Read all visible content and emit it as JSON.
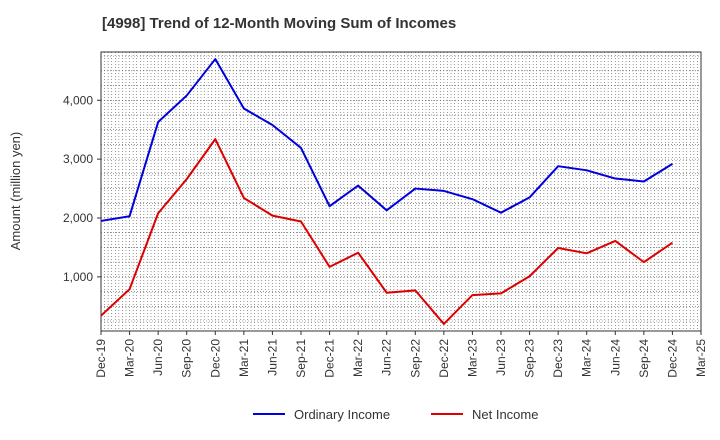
{
  "title": "[4998]  Trend of 12-Month Moving Sum of Incomes",
  "chart_data": {
    "type": "line",
    "title": "[4998]  Trend of 12-Month Moving Sum of Incomes",
    "xlabel": "",
    "ylabel": "Amount (million yen)",
    "ylim": [
      80,
      4820
    ],
    "yticks": [
      "1,000",
      "2,000",
      "3,000",
      "4,000"
    ],
    "ytick_values": [
      1000,
      2000,
      3000,
      4000
    ],
    "grid": true,
    "legend_position": "bottom-center",
    "categories": [
      "Dec-19",
      "Mar-20",
      "Jun-20",
      "Sep-20",
      "Dec-20",
      "Mar-21",
      "Jun-21",
      "Sep-21",
      "Dec-21",
      "Mar-22",
      "Jun-22",
      "Sep-22",
      "Dec-22",
      "Mar-23",
      "Jun-23",
      "Sep-23",
      "Dec-23",
      "Mar-24",
      "Jun-24",
      "Sep-24",
      "Dec-24",
      "Mar-25"
    ],
    "series": [
      {
        "name": "Ordinary Income",
        "color": "#0000dd",
        "values": [
          1950,
          2030,
          3630,
          4080,
          4700,
          3860,
          3580,
          3190,
          2200,
          2550,
          2130,
          2500,
          2460,
          2320,
          2090,
          2350,
          2880,
          2810,
          2670,
          2620,
          2920,
          null
        ]
      },
      {
        "name": "Net Income",
        "color": "#dd0000",
        "values": [
          340,
          790,
          2080,
          2660,
          3340,
          2340,
          2040,
          1940,
          1170,
          1410,
          730,
          770,
          200,
          690,
          720,
          1010,
          1490,
          1400,
          1610,
          1250,
          1580,
          null
        ]
      }
    ]
  }
}
